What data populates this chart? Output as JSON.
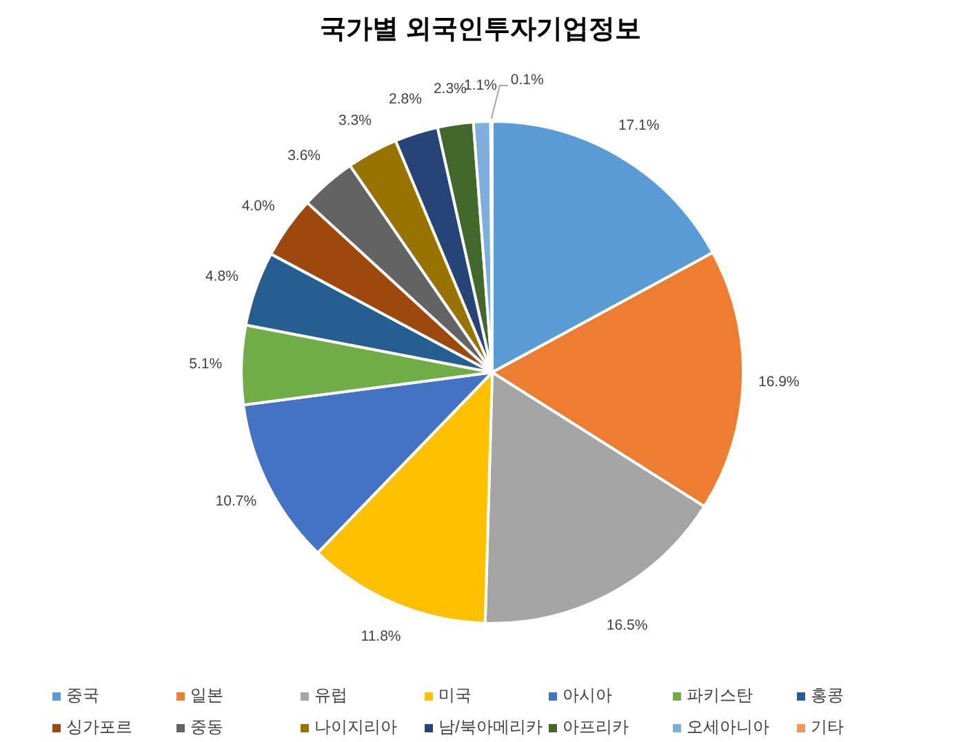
{
  "chart_data": {
    "type": "pie",
    "title": "국가별 외국인투자기업정보",
    "categories": [
      "중국",
      "일본",
      "유럽",
      "미국",
      "아시아",
      "파키스탄",
      "홍콩",
      "싱가포르",
      "중동",
      "나이지리아",
      "남/북아메리카",
      "아프리카",
      "오세아니아",
      "기타"
    ],
    "values": [
      17.1,
      16.9,
      16.5,
      11.8,
      10.7,
      5.1,
      4.8,
      4.0,
      3.6,
      3.3,
      2.8,
      2.3,
      1.1,
      0.1
    ],
    "value_labels": [
      "17.1%",
      "16.9%",
      "16.5%",
      "11.8%",
      "10.7%",
      "5.1%",
      "4.8%",
      "4.0%",
      "3.6%",
      "3.3%",
      "2.8%",
      "2.3%",
      "1.1%",
      "0.1%"
    ],
    "colors": [
      "#5b9bd5",
      "#ed7d31",
      "#a5a5a5",
      "#ffc000",
      "#4472c4",
      "#70ad47",
      "#255e91",
      "#9e480e",
      "#636363",
      "#997300",
      "#264478",
      "#43682b",
      "#7cafdd",
      "#f1975a"
    ],
    "legend": "bottom"
  }
}
